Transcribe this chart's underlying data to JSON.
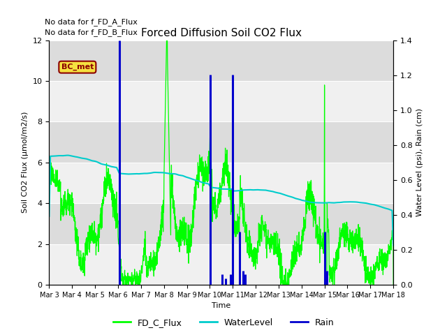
{
  "title": "Forced Diffusion Soil CO2 Flux",
  "xlabel": "Time",
  "ylabel_left": "Soil CO2 Flux (μmol/m2/s)",
  "ylabel_right": "Water Level (psi), Rain (cm)",
  "text_no_data_A": "No data for f_FD_A_Flux",
  "text_no_data_B": "No data for f_FD_B_Flux",
  "annotation_BC_met": "BC_met",
  "xlim_days": [
    0,
    15
  ],
  "ylim_left": [
    0,
    12
  ],
  "ylim_right": [
    0.0,
    1.4
  ],
  "yticks_left": [
    0,
    2,
    4,
    6,
    8,
    10,
    12
  ],
  "yticks_right": [
    0.0,
    0.2,
    0.4,
    0.6,
    0.8,
    1.0,
    1.2,
    1.4
  ],
  "xtick_positions": [
    0,
    1,
    2,
    3,
    4,
    5,
    6,
    7,
    8,
    9,
    10,
    11,
    12,
    13,
    14,
    15
  ],
  "xtick_labels": [
    "Mar 3",
    "Mar 4",
    "Mar 5",
    "Mar 6",
    "Mar 7",
    "Mar 8",
    "Mar 9",
    "Mar 10",
    "Mar 11",
    "Mar 12",
    "Mar 13",
    "Mar 14",
    "Mar 15",
    "Mar 16",
    "Mar 17",
    "Mar 18"
  ],
  "color_flux": "#00FF00",
  "color_water": "#00CCCC",
  "color_rain": "#0000CD",
  "bg_light": "#F0F0F0",
  "bg_dark": "#DCDCDC",
  "legend_labels": [
    "FD_C_Flux",
    "WaterLevel",
    "Rain"
  ],
  "rain_events": [
    {
      "day": 3.05,
      "height": 12.0
    },
    {
      "day": 7.02,
      "height": 10.3
    },
    {
      "day": 7.55,
      "height": 0.5
    },
    {
      "day": 7.7,
      "height": 0.3
    },
    {
      "day": 7.9,
      "height": 0.5
    },
    {
      "day": 8.0,
      "height": 10.3
    },
    {
      "day": 8.3,
      "height": 2.6
    },
    {
      "day": 8.45,
      "height": 0.7
    },
    {
      "day": 8.55,
      "height": 0.5
    },
    {
      "day": 12.0,
      "height": 2.6
    },
    {
      "day": 12.1,
      "height": 0.7
    }
  ]
}
